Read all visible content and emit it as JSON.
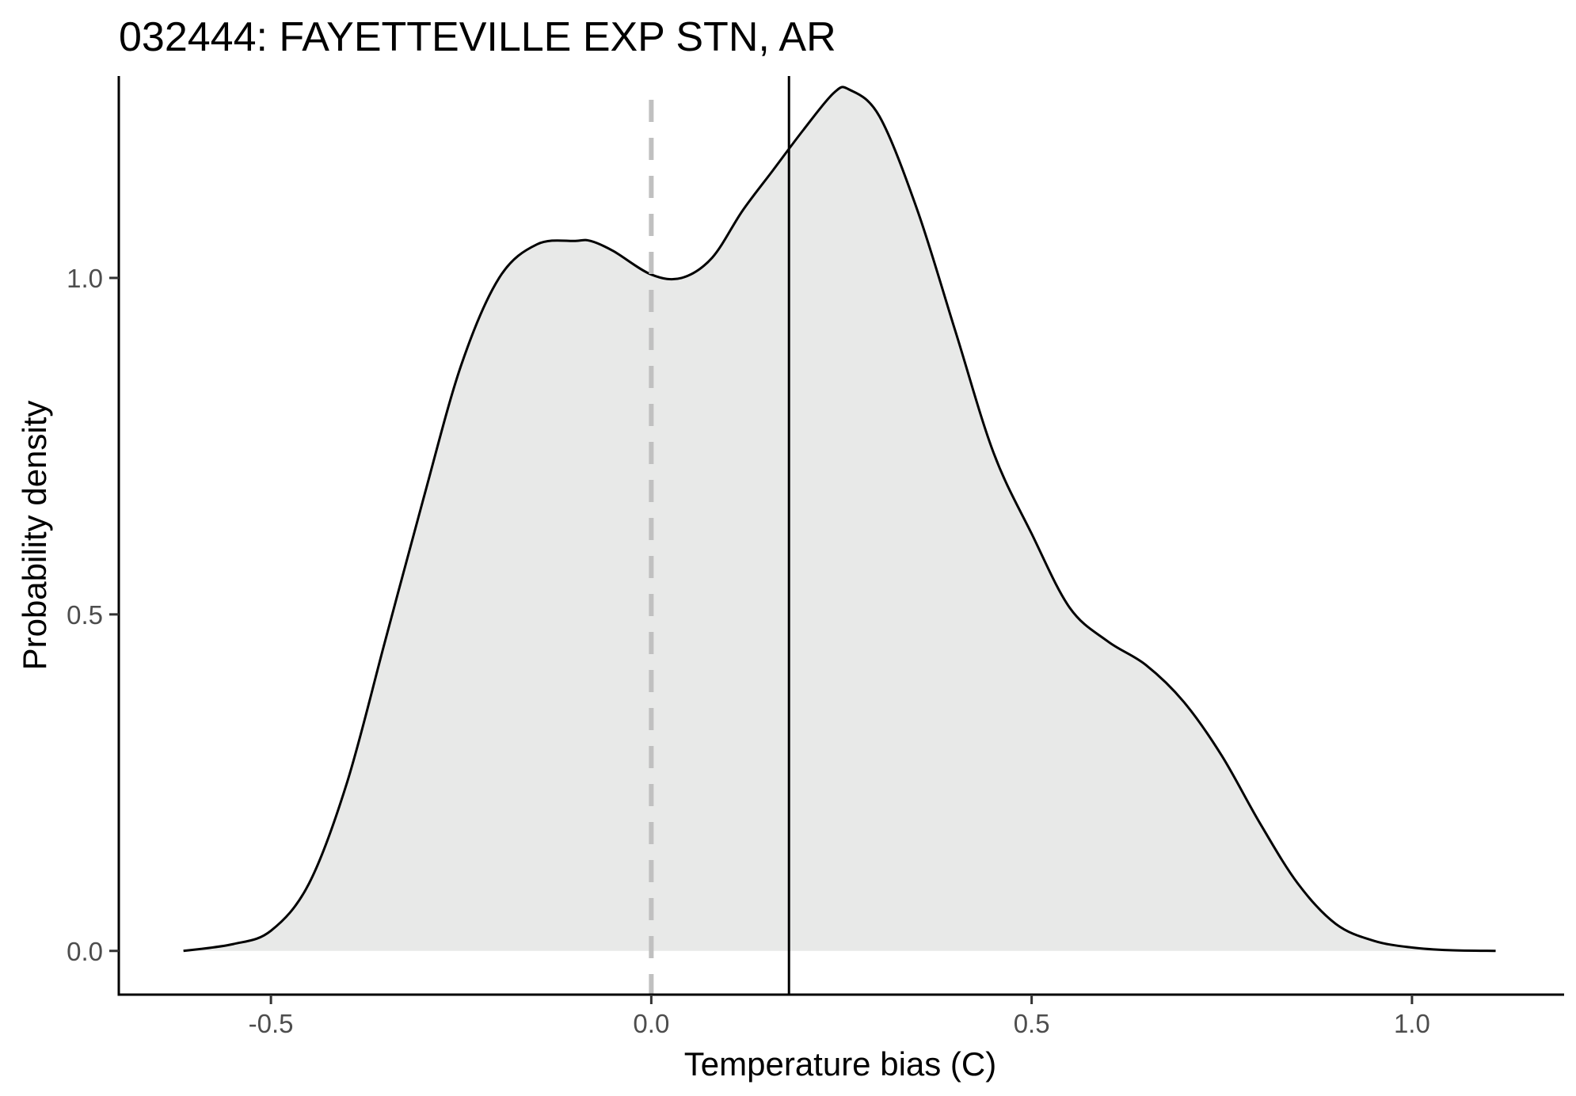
{
  "chart_data": {
    "type": "area",
    "title": "032444: FAYETTEVILLE EXP STN, AR",
    "xlabel": "Temperature bias (C)",
    "ylabel": "Probability density",
    "xlim": [
      -0.7,
      1.2
    ],
    "ylim": [
      -0.065,
      1.3
    ],
    "x_ticks": [
      {
        "value": -0.5,
        "label": "-0.5"
      },
      {
        "value": 0.0,
        "label": "0.0"
      },
      {
        "value": 0.5,
        "label": "0.5"
      },
      {
        "value": 1.0,
        "label": "1.0"
      }
    ],
    "y_ticks": [
      {
        "value": 0.0,
        "label": "0.0"
      },
      {
        "value": 0.5,
        "label": "0.5"
      },
      {
        "value": 1.0,
        "label": "1.0"
      }
    ],
    "series": [
      {
        "x": [
          -0.615,
          -0.55,
          -0.5,
          -0.45,
          -0.4,
          -0.35,
          -0.3,
          -0.25,
          -0.2,
          -0.15,
          -0.1,
          -0.08,
          -0.05,
          0.0,
          0.04,
          0.08,
          0.12,
          0.16,
          0.2,
          0.24,
          0.26,
          0.3,
          0.35,
          0.4,
          0.45,
          0.5,
          0.55,
          0.6,
          0.65,
          0.7,
          0.75,
          0.8,
          0.85,
          0.9,
          0.95,
          1.0,
          1.05,
          1.11
        ],
        "y": [
          0.0,
          0.01,
          0.03,
          0.1,
          0.25,
          0.46,
          0.67,
          0.87,
          1.0,
          1.05,
          1.055,
          1.055,
          1.04,
          1.005,
          1.0,
          1.03,
          1.1,
          1.16,
          1.22,
          1.275,
          1.28,
          1.24,
          1.1,
          0.92,
          0.74,
          0.62,
          0.51,
          0.46,
          0.425,
          0.37,
          0.29,
          0.19,
          0.1,
          0.04,
          0.015,
          0.005,
          0.001,
          0.0
        ],
        "fill": "#e8e9e8",
        "stroke": "#000000"
      }
    ],
    "reference_lines": [
      {
        "x": 0.0,
        "style": "dashed",
        "color": "#c0c0c0"
      },
      {
        "x": 0.181,
        "style": "solid",
        "color": "#000000"
      }
    ],
    "grid": false,
    "legend": "none"
  }
}
